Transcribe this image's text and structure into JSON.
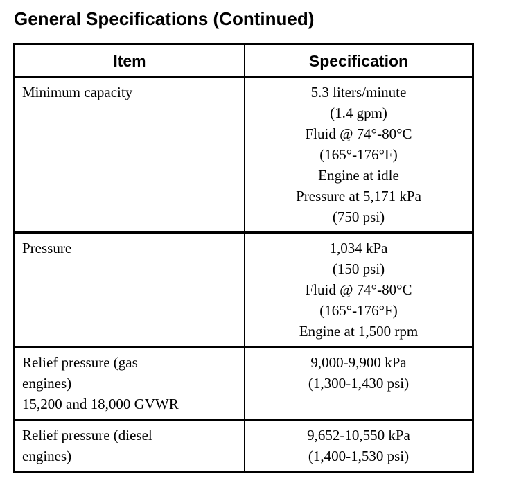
{
  "page": {
    "title": "General Specifications (Continued)"
  },
  "colors": {
    "text": "#000000",
    "background": "#ffffff",
    "border": "#000000"
  },
  "table": {
    "headers": {
      "item": "Item",
      "specification": "Specification"
    },
    "rows": [
      {
        "item_lines": [
          "Minimum capacity"
        ],
        "spec_lines": [
          "5.3 liters/minute",
          "(1.4 gpm)",
          "Fluid @ 74°-80°C",
          "(165°-176°F)",
          "Engine at idle",
          "Pressure at 5,171 kPa",
          "(750 psi)"
        ]
      },
      {
        "item_lines": [
          "Pressure"
        ],
        "spec_lines": [
          "1,034 kPa",
          "(150 psi)",
          "Fluid @ 74°-80°C",
          "(165°-176°F)",
          "Engine at 1,500 rpm"
        ]
      },
      {
        "item_lines": [
          "Relief pressure (gas",
          "engines)",
          "15,200 and 18,000 GVWR"
        ],
        "spec_lines": [
          "9,000-9,900 kPa",
          "(1,300-1,430 psi)"
        ]
      },
      {
        "item_lines": [
          "Relief pressure (diesel",
          "engines)"
        ],
        "spec_lines": [
          "9,652-10,550 kPa",
          "(1,400-1,530 psi)"
        ]
      }
    ]
  }
}
